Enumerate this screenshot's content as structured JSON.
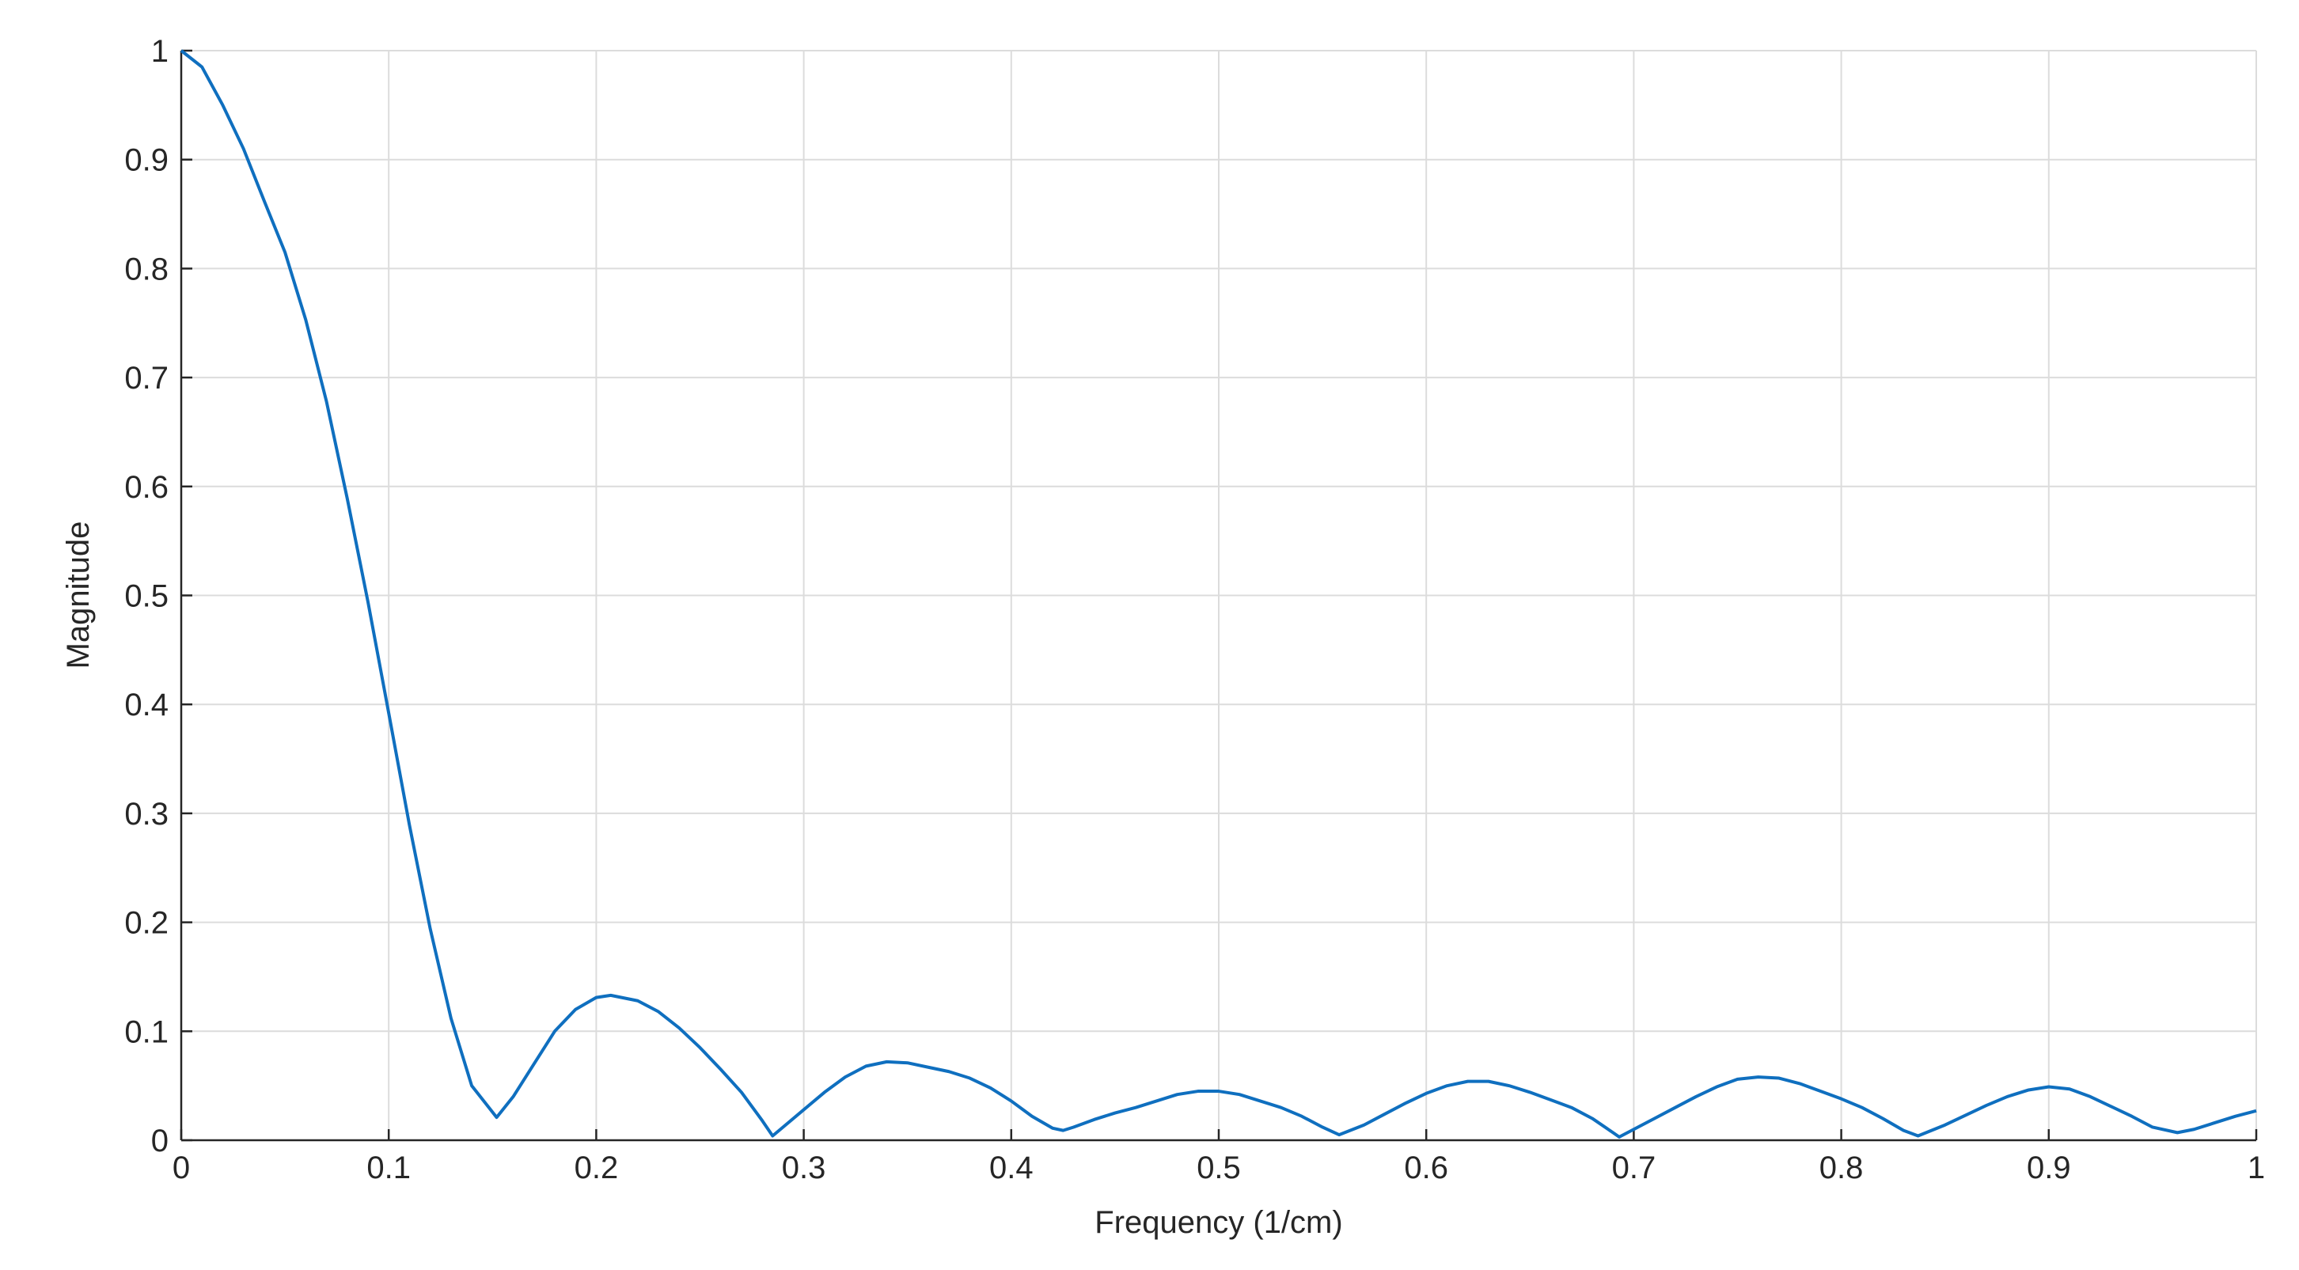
{
  "chart_data": {
    "type": "line",
    "x_label": "Frequency (1/cm)",
    "y_label": "Magnitude",
    "xlim": [
      0,
      1
    ],
    "ylim": [
      0,
      1
    ],
    "xticks": [
      0,
      0.1,
      0.2,
      0.3,
      0.4,
      0.5,
      0.6,
      0.7,
      0.8,
      0.9,
      1
    ],
    "yticks": [
      0,
      0.1,
      0.2,
      0.3,
      0.4,
      0.5,
      0.6,
      0.7,
      0.8,
      0.9,
      1
    ],
    "grid": true,
    "series": [
      {
        "color": "#0f6fbf",
        "x": [
          0,
          0.01,
          0.02,
          0.03,
          0.04,
          0.05,
          0.06,
          0.07,
          0.08,
          0.09,
          0.1,
          0.11,
          0.12,
          0.13,
          0.14,
          0.152,
          0.16,
          0.17,
          0.18,
          0.19,
          0.2,
          0.207,
          0.22,
          0.23,
          0.24,
          0.25,
          0.26,
          0.27,
          0.28,
          0.285,
          0.29,
          0.3,
          0.31,
          0.32,
          0.33,
          0.34,
          0.35,
          0.36,
          0.37,
          0.38,
          0.39,
          0.4,
          0.41,
          0.42,
          0.425,
          0.43,
          0.44,
          0.45,
          0.46,
          0.47,
          0.48,
          0.49,
          0.5,
          0.51,
          0.52,
          0.53,
          0.54,
          0.55,
          0.558,
          0.57,
          0.58,
          0.59,
          0.6,
          0.61,
          0.62,
          0.63,
          0.64,
          0.65,
          0.66,
          0.67,
          0.68,
          0.69,
          0.693,
          0.7,
          0.71,
          0.72,
          0.73,
          0.74,
          0.75,
          0.76,
          0.77,
          0.78,
          0.79,
          0.8,
          0.81,
          0.82,
          0.83,
          0.837,
          0.85,
          0.86,
          0.87,
          0.88,
          0.89,
          0.9,
          0.91,
          0.92,
          0.93,
          0.94,
          0.95,
          0.962,
          0.97,
          0.98,
          0.99,
          1
        ],
        "values": [
          1.0,
          0.985,
          0.95,
          0.91,
          0.862,
          0.815,
          0.753,
          0.678,
          0.589,
          0.494,
          0.392,
          0.289,
          0.194,
          0.112,
          0.05,
          0.021,
          0.04,
          0.07,
          0.1,
          0.12,
          0.131,
          0.133,
          0.128,
          0.118,
          0.103,
          0.085,
          0.065,
          0.044,
          0.018,
          0.004,
          0.012,
          0.028,
          0.044,
          0.058,
          0.068,
          0.072,
          0.071,
          0.067,
          0.063,
          0.057,
          0.048,
          0.036,
          0.022,
          0.011,
          0.009,
          0.012,
          0.019,
          0.025,
          0.03,
          0.036,
          0.042,
          0.045,
          0.045,
          0.042,
          0.036,
          0.03,
          0.022,
          0.012,
          0.005,
          0.014,
          0.024,
          0.034,
          0.043,
          0.05,
          0.054,
          0.054,
          0.05,
          0.044,
          0.037,
          0.03,
          0.02,
          0.007,
          0.003,
          0.01,
          0.02,
          0.03,
          0.04,
          0.049,
          0.056,
          0.058,
          0.057,
          0.052,
          0.045,
          0.038,
          0.03,
          0.02,
          0.009,
          0.004,
          0.014,
          0.023,
          0.032,
          0.04,
          0.046,
          0.049,
          0.047,
          0.04,
          0.031,
          0.022,
          0.012,
          0.007,
          0.01,
          0.016,
          0.022,
          0.027
        ]
      }
    ]
  }
}
